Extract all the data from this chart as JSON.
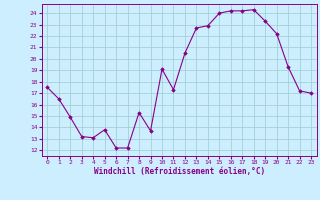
{
  "x": [
    0,
    1,
    2,
    3,
    4,
    5,
    6,
    7,
    8,
    9,
    10,
    11,
    12,
    13,
    14,
    15,
    16,
    17,
    18,
    19,
    20,
    21,
    22,
    23
  ],
  "y": [
    17.5,
    16.5,
    14.9,
    13.2,
    13.1,
    13.8,
    12.2,
    12.2,
    15.3,
    13.7,
    19.1,
    17.3,
    20.5,
    22.7,
    22.9,
    24.0,
    24.2,
    24.2,
    24.3,
    23.3,
    22.2,
    19.3,
    17.2,
    17.0
  ],
  "xlim": [
    -0.5,
    23.5
  ],
  "ylim": [
    11.5,
    24.8
  ],
  "yticks": [
    12,
    13,
    14,
    15,
    16,
    17,
    18,
    19,
    20,
    21,
    22,
    23,
    24
  ],
  "xticks": [
    0,
    1,
    2,
    3,
    4,
    5,
    6,
    7,
    8,
    9,
    10,
    11,
    12,
    13,
    14,
    15,
    16,
    17,
    18,
    19,
    20,
    21,
    22,
    23
  ],
  "line_color": "#880088",
  "marker": "D",
  "marker_size": 1.8,
  "line_width": 0.8,
  "bg_color": "#cceeff",
  "grid_color": "#99cccc",
  "xlabel": "Windchill (Refroidissement éolien,°C)",
  "tick_label_color": "#880088",
  "spine_color": "#880088"
}
